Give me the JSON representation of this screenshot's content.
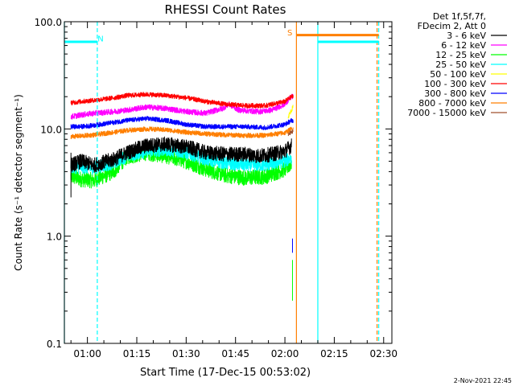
{
  "chart_data": {
    "type": "line",
    "title": "RHESSI Count Rates",
    "xlabel": "Start Time (17-Dec-15 00:53:02)",
    "ylabel": "Count Rate (s⁻¹ detector segment⁻¹)",
    "yscale": "log",
    "ylim": [
      0.1,
      100
    ],
    "xlim_minutes": [
      53.0,
      152.5
    ],
    "x_ticks": [
      {
        "label": "01:00",
        "minute": 60
      },
      {
        "label": "01:15",
        "minute": 75
      },
      {
        "label": "01:30",
        "minute": 90
      },
      {
        "label": "01:45",
        "minute": 105
      },
      {
        "label": "02:00",
        "minute": 120
      },
      {
        "label": "02:15",
        "minute": 135
      },
      {
        "label": "02:30",
        "minute": 150
      }
    ],
    "y_ticks": [
      {
        "label": "100.0",
        "value": 100
      },
      {
        "label": "10.0",
        "value": 10
      },
      {
        "label": "1.0",
        "value": 1
      },
      {
        "label": "0.1",
        "value": 0.1
      }
    ],
    "legend_header": [
      "Det 1f,5f,7f,",
      "FDecim 2, Att 0"
    ],
    "series": [
      {
        "name": "3 - 6 keV",
        "color": "#000000",
        "t_start": 55.0,
        "t_end": 122.0,
        "anchors": [
          [
            55,
            4.6
          ],
          [
            58,
            5.0
          ],
          [
            62,
            4.6
          ],
          [
            68,
            5.2
          ],
          [
            72,
            6.0
          ],
          [
            78,
            7.0
          ],
          [
            84,
            7.2
          ],
          [
            90,
            6.8
          ],
          [
            96,
            6.0
          ],
          [
            102,
            5.8
          ],
          [
            108,
            5.8
          ],
          [
            112,
            5.6
          ],
          [
            116,
            5.8
          ],
          [
            120,
            6.2
          ],
          [
            122,
            7.0
          ]
        ],
        "noise": 0.16
      },
      {
        "name": "6 - 12 keV",
        "color": "#ff00ff",
        "t_start": 55.0,
        "t_end": 122.5,
        "anchors": [
          [
            55,
            13.0
          ],
          [
            58,
            13.5
          ],
          [
            62,
            14.0
          ],
          [
            68,
            14.5
          ],
          [
            72,
            15.0
          ],
          [
            78,
            16.0
          ],
          [
            84,
            15.5
          ],
          [
            90,
            14.5
          ],
          [
            96,
            14.0
          ],
          [
            101,
            15.5
          ],
          [
            103,
            17.0
          ],
          [
            106,
            15.0
          ],
          [
            112,
            14.5
          ],
          [
            116,
            15.0
          ],
          [
            120,
            17.0
          ],
          [
            122,
            20.0
          ]
        ],
        "noise": 0.06
      },
      {
        "name": "12 - 25 keV",
        "color": "#00ff00",
        "t_start": 55.0,
        "t_end": 122.0,
        "anchors": [
          [
            55,
            3.6
          ],
          [
            58,
            3.4
          ],
          [
            62,
            3.3
          ],
          [
            68,
            4.0
          ],
          [
            72,
            5.5
          ],
          [
            78,
            6.0
          ],
          [
            84,
            5.6
          ],
          [
            90,
            5.0
          ],
          [
            96,
            4.2
          ],
          [
            102,
            3.7
          ],
          [
            108,
            3.5
          ],
          [
            114,
            3.6
          ],
          [
            120,
            4.2
          ],
          [
            122,
            4.8
          ]
        ],
        "noise": 0.17
      },
      {
        "name": "25 - 50 keV",
        "color": "#00ffff",
        "t_start": 55.0,
        "t_end": 122.0,
        "anchors": [
          [
            55,
            4.4
          ],
          [
            58,
            4.4
          ],
          [
            62,
            4.3
          ],
          [
            68,
            4.8
          ],
          [
            72,
            5.6
          ],
          [
            78,
            6.2
          ],
          [
            84,
            6.4
          ],
          [
            90,
            6.0
          ],
          [
            96,
            5.2
          ],
          [
            102,
            4.8
          ],
          [
            108,
            4.6
          ],
          [
            114,
            4.6
          ],
          [
            120,
            5.0
          ],
          [
            122,
            5.4
          ]
        ],
        "noise": 0.14
      },
      {
        "name": "50 - 100 keV",
        "color": "#ffff00",
        "t_start": 121.0,
        "t_end": 122.5,
        "anchors": [
          [
            121,
            13.0
          ],
          [
            122.5,
            16.0
          ]
        ],
        "noise": 0.05
      },
      {
        "name": "100 - 300 keV",
        "color": "#ff0000",
        "t_start": 55.0,
        "t_end": 122.5,
        "anchors": [
          [
            55,
            17.5
          ],
          [
            58,
            18.0
          ],
          [
            62,
            18.5
          ],
          [
            68,
            19.5
          ],
          [
            72,
            20.5
          ],
          [
            78,
            21.0
          ],
          [
            84,
            20.5
          ],
          [
            90,
            19.5
          ],
          [
            96,
            18.0
          ],
          [
            102,
            17.0
          ],
          [
            108,
            16.5
          ],
          [
            114,
            16.5
          ],
          [
            120,
            18.0
          ],
          [
            122,
            20.0
          ]
        ],
        "noise": 0.05
      },
      {
        "name": "300 - 800 keV",
        "color": "#0000ff",
        "t_start": 55.0,
        "t_end": 122.5,
        "anchors": [
          [
            55,
            10.5
          ],
          [
            58,
            10.5
          ],
          [
            62,
            10.8
          ],
          [
            68,
            11.5
          ],
          [
            72,
            12.0
          ],
          [
            78,
            12.5
          ],
          [
            84,
            12.0
          ],
          [
            90,
            11.0
          ],
          [
            96,
            10.5
          ],
          [
            102,
            10.5
          ],
          [
            108,
            10.5
          ],
          [
            114,
            10.3
          ],
          [
            120,
            11.0
          ],
          [
            122,
            12.0
          ]
        ],
        "noise": 0.05
      },
      {
        "name": "800 - 7000 keV",
        "color": "#ff7f00",
        "t_start": 55.0,
        "t_end": 122.5,
        "anchors": [
          [
            55,
            8.5
          ],
          [
            58,
            8.6
          ],
          [
            62,
            8.8
          ],
          [
            68,
            9.3
          ],
          [
            72,
            9.7
          ],
          [
            78,
            10.0
          ],
          [
            84,
            9.8
          ],
          [
            90,
            9.3
          ],
          [
            96,
            9.0
          ],
          [
            102,
            8.8
          ],
          [
            108,
            8.7
          ],
          [
            114,
            8.7
          ],
          [
            120,
            9.2
          ],
          [
            122,
            10.0
          ]
        ],
        "noise": 0.05
      },
      {
        "name": "7000 - 15000 keV",
        "color": "#a0522d",
        "t_start": 121.0,
        "t_end": 122.5,
        "anchors": [
          [
            121,
            9.0
          ],
          [
            122.5,
            9.5
          ]
        ],
        "noise": 0.04
      }
    ],
    "annotations": [
      {
        "text": "N",
        "color": "#00ffff",
        "x_minute": 64.0,
        "y_value": 70
      },
      {
        "text": "S",
        "color": "#ff7f00",
        "x_minute": 121.5,
        "y_value": 80
      }
    ],
    "flag_bars": [
      {
        "color": "#00ffff",
        "x_start": 53.0,
        "x_end": 63.0,
        "y_value": 65
      },
      {
        "color": "#ff7f00",
        "x_start": 123.5,
        "x_end": 148.5,
        "y_value": 75
      },
      {
        "color": "#00ffff",
        "x_start": 130.0,
        "x_end": 148.5,
        "y_value": 65
      }
    ],
    "vertical_lines": [
      {
        "color": "#00ffff",
        "minute": 53.0,
        "style": "solid"
      },
      {
        "color": "#00ffff",
        "minute": 63.0,
        "style": "dashed"
      },
      {
        "color": "#ff7f00",
        "minute": 123.5,
        "style": "solid"
      },
      {
        "color": "#00ffff",
        "minute": 130.0,
        "style": "solid"
      },
      {
        "color": "#00ffff",
        "minute": 148.5,
        "style": "dashed"
      },
      {
        "color": "#ff7f00",
        "minute": 148.0,
        "style": "dashed"
      }
    ],
    "footer": "2-Nov-2021 22:45"
  }
}
